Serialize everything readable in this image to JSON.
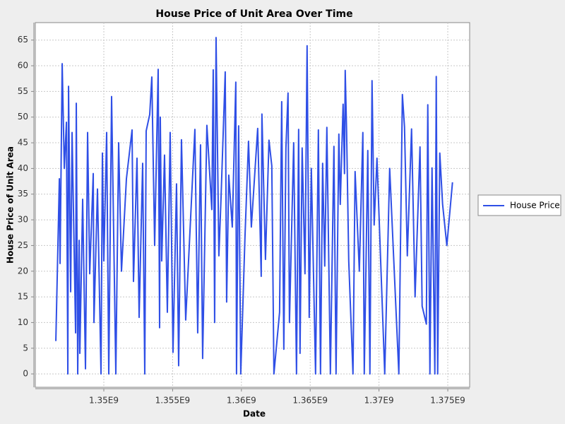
{
  "chart_data": {
    "type": "line",
    "title": "House Price of Unit Area Over Time",
    "x_label": "Date",
    "y_label": "House Price of Unit Area",
    "x": [
      1346512000,
      1346768000,
      1346819000,
      1346973000,
      1347127000,
      1347281000,
      1347384000,
      1347435000,
      1347589000,
      1347692000,
      1347948000,
      1347999000,
      1348102000,
      1348205000,
      1348256000,
      1348461000,
      1348666000,
      1348820000,
      1348974000,
      1349231000,
      1349282000,
      1349538000,
      1349795000,
      1349897000,
      1350000000,
      1350205000,
      1350359000,
      1350564000,
      1350872000,
      1351077000,
      1351283000,
      1351642000,
      1352052000,
      1352155000,
      1352411000,
      1352565000,
      1352822000,
      1352975000,
      1353078000,
      1353335000,
      1353488000,
      1353694000,
      1353950000,
      1354053000,
      1354104000,
      1354207000,
      1354412000,
      1354617000,
      1354822000,
      1355027000,
      1355284000,
      1355438000,
      1355643000,
      1355951000,
      1356618000,
      1356823000,
      1357028000,
      1357182000,
      1357490000,
      1357849000,
      1357952000,
      1358054000,
      1358157000,
      1358362000,
      1358516000,
      1358824000,
      1358926000,
      1359080000,
      1359337000,
      1359593000,
      1359644000,
      1359798000,
      1359952000,
      1360260000,
      1360517000,
      1360722000,
      1361183000,
      1361440000,
      1361491000,
      1361748000,
      1362004000,
      1362209000,
      1362363000,
      1362774000,
      1362928000,
      1363082000,
      1363235000,
      1363389000,
      1363492000,
      1363800000,
      1364005000,
      1364159000,
      1364261000,
      1364415000,
      1364621000,
      1364774000,
      1364928000,
      1365082000,
      1365390000,
      1365595000,
      1365749000,
      1365903000,
      1366057000,
      1366211000,
      1366467000,
      1366724000,
      1366878000,
      1367083000,
      1367186000,
      1367391000,
      1367493000,
      1367545000,
      1367647000,
      1367801000,
      1368109000,
      1368263000,
      1368571000,
      1368827000,
      1368930000,
      1369186000,
      1369340000,
      1369494000,
      1369648000,
      1369853000,
      1370417000,
      1370777000,
      1371443000,
      1371700000,
      1371854000,
      1372059000,
      1372367000,
      1372623000,
      1372982000,
      1373136000,
      1373444000,
      1373547000,
      1373701000,
      1373855000,
      1374060000,
      1374162000,
      1374265000,
      1374419000,
      1374624000,
      1374932000,
      1375342000
    ],
    "series": [
      {
        "name": "House Price",
        "color": "#2f4fe6",
        "values": [
          6.4,
          38,
          21.5,
          60.4,
          40,
          49,
          0,
          56,
          16,
          47,
          8,
          52.7,
          0,
          26,
          4,
          34,
          1,
          47,
          19.5,
          39,
          10,
          36,
          0,
          43,
          22,
          47,
          0,
          54,
          0,
          45,
          20,
          38,
          47.5,
          18,
          42,
          11,
          41,
          0,
          47.3,
          50.5,
          57.8,
          25,
          59.3,
          9,
          50,
          22,
          42.6,
          12,
          47,
          4.2,
          37,
          1.6,
          45.6,
          10.5,
          47.6,
          8,
          44.6,
          3,
          48.4,
          32,
          59.2,
          10,
          65.5,
          23,
          34,
          58.8,
          14,
          38.7,
          28.6,
          56.8,
          0,
          48.3,
          0,
          26.7,
          45.3,
          28.6,
          47.8,
          19,
          50.6,
          22.3,
          45.5,
          40.5,
          0,
          12,
          53,
          4.8,
          44,
          54.7,
          10,
          45,
          0,
          47.6,
          4,
          44,
          19.5,
          63.9,
          11,
          40,
          0,
          47.5,
          0,
          41,
          21,
          48,
          0,
          44.3,
          0,
          46.7,
          33,
          52.5,
          39,
          59.1,
          47,
          22,
          0,
          39.4,
          20,
          47,
          0,
          43.5,
          0,
          57.1,
          29,
          42,
          0,
          40,
          0,
          54.4,
          48.1,
          23,
          47.7,
          15,
          44.2,
          13.2,
          9.7,
          52.4,
          0,
          40.1,
          0,
          57.9,
          0,
          43,
          33,
          25,
          37.3
        ]
      }
    ],
    "xlim": [
      1345020000,
      1376590000
    ],
    "ylim": [
      -2.6,
      68.4
    ],
    "xticks": [
      {
        "value": 1350000000,
        "label": "1.35E9"
      },
      {
        "value": 1355000000,
        "label": "1.355E9"
      },
      {
        "value": 1360000000,
        "label": "1.36E9"
      },
      {
        "value": 1365000000,
        "label": "1.365E9"
      },
      {
        "value": 1370000000,
        "label": "1.37E9"
      },
      {
        "value": 1375000000,
        "label": "1.375E9"
      }
    ],
    "yticks": [
      0,
      5,
      10,
      15,
      20,
      25,
      30,
      35,
      40,
      45,
      50,
      55,
      60,
      65
    ],
    "grid": true,
    "legend": "right"
  }
}
